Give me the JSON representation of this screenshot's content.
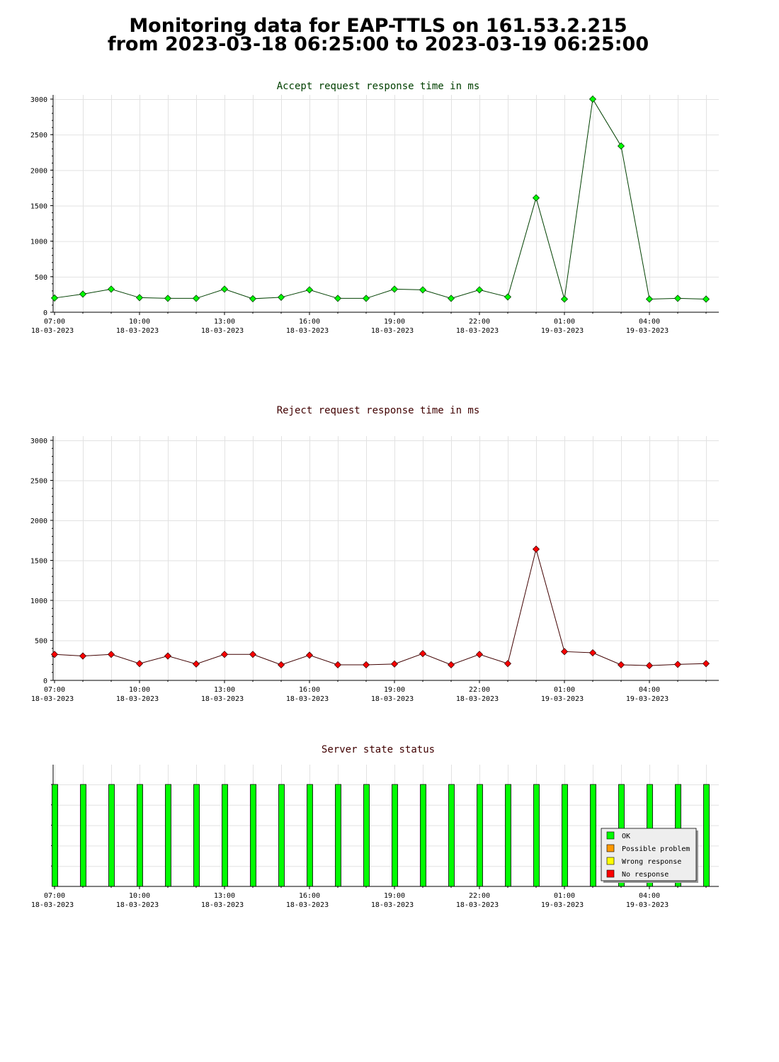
{
  "page_title": {
    "line1": "Monitoring data for EAP-TTLS on 161.53.2.215",
    "line2": "from 2023-03-18 06:25:00 to 2023-03-19 06:25:00"
  },
  "colors": {
    "accept_line": "#004000",
    "accept_marker": "#00ff00",
    "reject_line": "#400000",
    "reject_marker": "#ff0000",
    "ok": "#00ff00",
    "possible_problem": "#ff9900",
    "wrong_response": "#ffff00",
    "no_response": "#ff0000"
  },
  "x_ticks": [
    {
      "time": "07:00",
      "date": "18-03-2023",
      "hour": 0
    },
    {
      "time": "10:00",
      "date": "18-03-2023",
      "hour": 3
    },
    {
      "time": "13:00",
      "date": "18-03-2023",
      "hour": 6
    },
    {
      "time": "16:00",
      "date": "18-03-2023",
      "hour": 9
    },
    {
      "time": "19:00",
      "date": "18-03-2023",
      "hour": 12
    },
    {
      "time": "22:00",
      "date": "18-03-2023",
      "hour": 15
    },
    {
      "time": "01:00",
      "date": "19-03-2023",
      "hour": 18
    },
    {
      "time": "04:00",
      "date": "19-03-2023",
      "hour": 21
    }
  ],
  "chart_data": [
    {
      "type": "line",
      "title": "Accept request response time in ms",
      "ylim": [
        0,
        3000
      ],
      "yticks": [
        0,
        500,
        1000,
        1500,
        2000,
        2500,
        3000
      ],
      "grid": true,
      "x": [
        "07:00",
        "08:00",
        "09:00",
        "10:00",
        "11:00",
        "12:00",
        "13:00",
        "14:00",
        "15:00",
        "16:00",
        "17:00",
        "18:00",
        "19:00",
        "20:00",
        "21:00",
        "22:00",
        "23:00",
        "00:00",
        "01:00",
        "02:00",
        "03:00",
        "04:00",
        "05:00",
        "06:00"
      ],
      "values": [
        200,
        255,
        325,
        205,
        195,
        195,
        325,
        190,
        210,
        315,
        195,
        195,
        325,
        315,
        195,
        315,
        215,
        1610,
        185,
        3000,
        2340,
        185,
        195,
        185
      ]
    },
    {
      "type": "line",
      "title": "Reject request response time in ms",
      "ylim": [
        0,
        3000
      ],
      "yticks": [
        0,
        500,
        1000,
        1500,
        2000,
        2500,
        3000
      ],
      "grid": true,
      "x": [
        "07:00",
        "08:00",
        "09:00",
        "10:00",
        "11:00",
        "12:00",
        "13:00",
        "14:00",
        "15:00",
        "16:00",
        "17:00",
        "18:00",
        "19:00",
        "20:00",
        "21:00",
        "22:00",
        "23:00",
        "00:00",
        "01:00",
        "02:00",
        "03:00",
        "04:00",
        "05:00",
        "06:00"
      ],
      "values": [
        325,
        305,
        325,
        210,
        305,
        205,
        325,
        325,
        195,
        315,
        195,
        195,
        205,
        335,
        195,
        325,
        210,
        1640,
        360,
        345,
        195,
        185,
        200,
        210
      ]
    },
    {
      "type": "bar",
      "title": "Server state status",
      "legend_position": "bottom-right",
      "x": [
        "07:00",
        "08:00",
        "09:00",
        "10:00",
        "11:00",
        "12:00",
        "13:00",
        "14:00",
        "15:00",
        "16:00",
        "17:00",
        "18:00",
        "19:00",
        "20:00",
        "21:00",
        "22:00",
        "23:00",
        "00:00",
        "01:00",
        "02:00",
        "03:00",
        "04:00",
        "05:00",
        "06:00"
      ],
      "status": [
        "OK",
        "OK",
        "OK",
        "OK",
        "OK",
        "OK",
        "OK",
        "OK",
        "OK",
        "OK",
        "OK",
        "OK",
        "OK",
        "OK",
        "OK",
        "OK",
        "OK",
        "OK",
        "OK",
        "OK",
        "OK",
        "OK",
        "OK",
        "OK"
      ],
      "legend": [
        {
          "label": "OK",
          "color_key": "ok"
        },
        {
          "label": "Possible problem",
          "color_key": "possible_problem"
        },
        {
          "label": "Wrong response",
          "color_key": "wrong_response"
        },
        {
          "label": "No response",
          "color_key": "no_response"
        }
      ]
    }
  ]
}
